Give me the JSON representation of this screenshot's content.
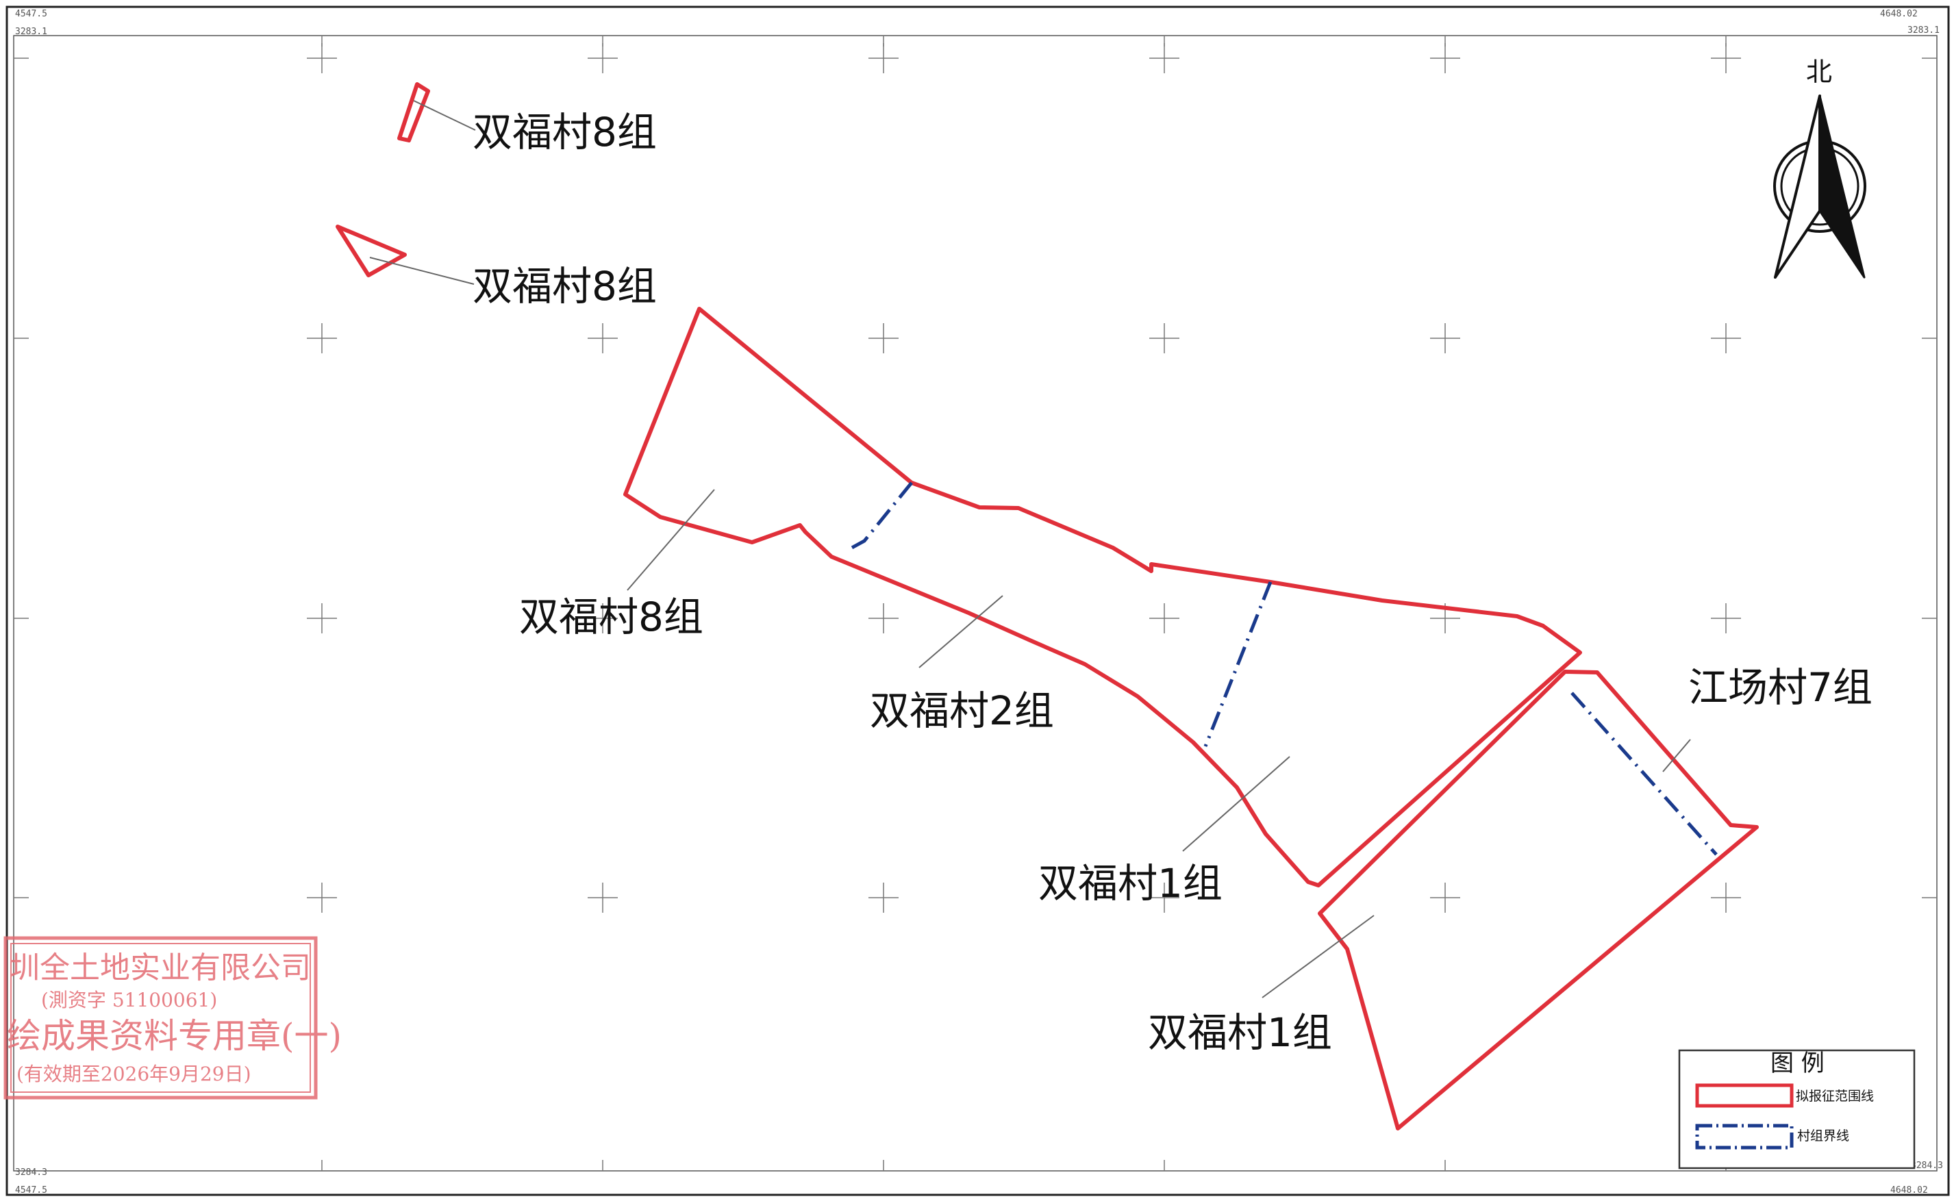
{
  "map": {
    "corner_labels": {
      "top_left_x": "4547.5",
      "top_left_y": "3283.1",
      "top_right_x": "4648.02",
      "top_right_y": "3283.1",
      "bottom_left_y": "3284.3",
      "bottom_left_x": "4547.5",
      "bottom_right_y": "3284.3",
      "bottom_right_x": "4648.02"
    },
    "north_arrow": {
      "label": "北"
    },
    "parcel_labels": [
      "双福村8组",
      "双福村8组",
      "双福村8组",
      "双福村2组",
      "双福村1组",
      "双福村1组",
      "江场村7组"
    ],
    "legend": {
      "title": "图 例",
      "items": [
        {
          "label": "拟报征范围线",
          "color": "#e0303a",
          "style": "solid"
        },
        {
          "label": "村组界线",
          "color": "#1a3a8c",
          "style": "dash-dot"
        }
      ]
    },
    "stamp": {
      "line1": "圳全土地实业有限公司",
      "line2": "(測资字 51100061)",
      "line3": "绘成果资料专用章(一)",
      "line4": "(有效期至2026年9月29日)",
      "color": "#e36a72"
    },
    "colors": {
      "boundary": "#e0303a",
      "village_line": "#1a3a8c",
      "frame": "#222222",
      "grid": "#777777"
    }
  }
}
